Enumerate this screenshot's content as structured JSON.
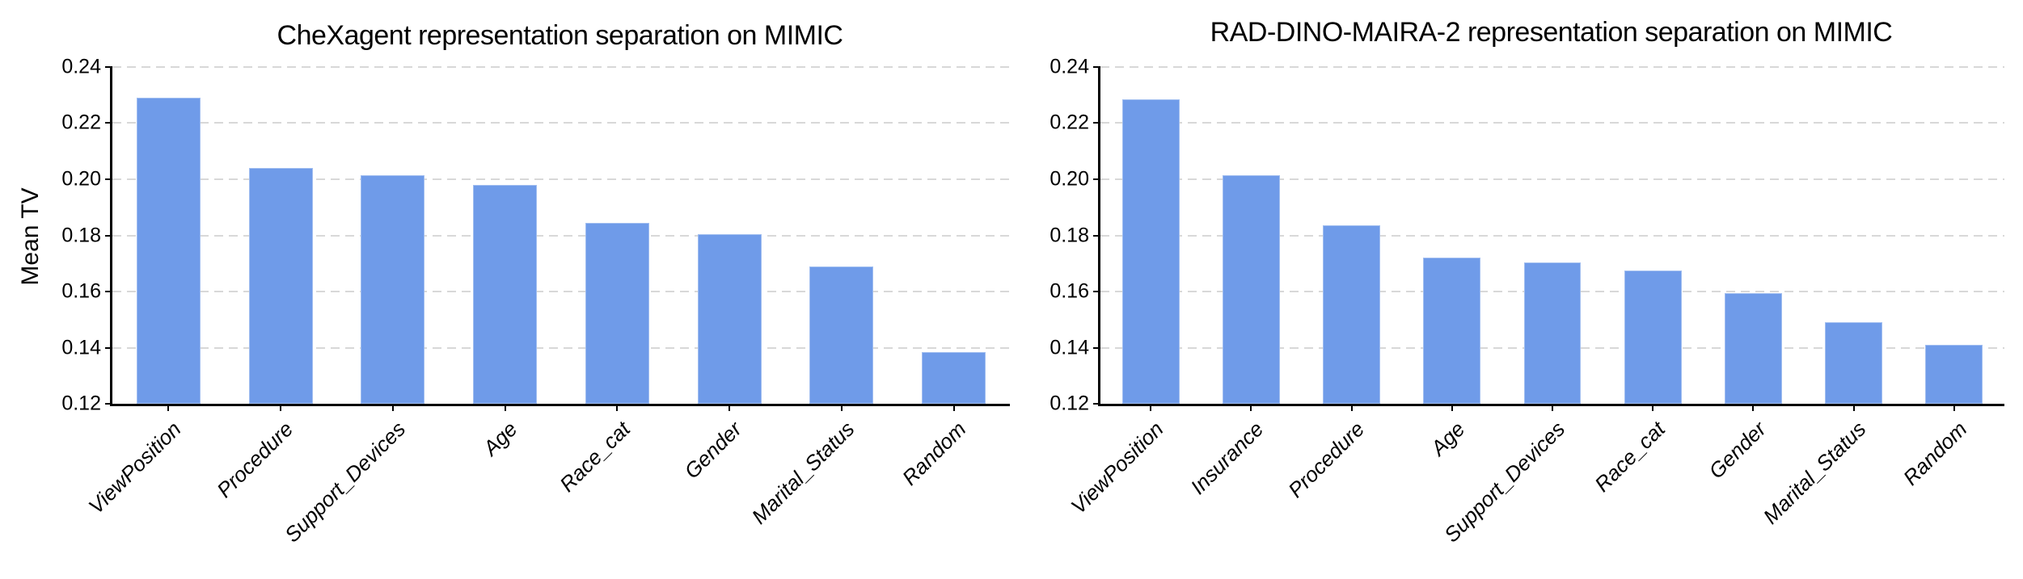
{
  "style": {
    "bar_color": "#6f9be9",
    "grid_color": "#d8d8d8",
    "axis_color": "#000000",
    "text_color": "#000000",
    "background": "#ffffff"
  },
  "chart_data": [
    {
      "type": "bar",
      "title": "CheXagent representation separation on MIMIC",
      "xlabel": "",
      "ylabel": "Mean TV",
      "categories": [
        "ViewPosition",
        "Procedure",
        "Support_Devices",
        "Age",
        "Race_cat",
        "Gender",
        "Marital_Status",
        "Random"
      ],
      "values": [
        0.229,
        0.204,
        0.2015,
        0.198,
        0.1845,
        0.1805,
        0.169,
        0.1385
      ],
      "ylim": [
        0.12,
        0.24
      ],
      "yticks": [
        0.12,
        0.14,
        0.16,
        0.18,
        0.2,
        0.22,
        0.24
      ],
      "yticklabels": [
        "0.12",
        "0.14",
        "0.16",
        "0.18",
        "0.20",
        "0.22",
        "0.24"
      ],
      "grid": "horizontal dashed, axisbelow",
      "legend": "none",
      "bar_color": "#6f9be9",
      "xtick_style": "italic, rotated 45deg, right-anchored"
    },
    {
      "type": "bar",
      "title": "RAD-DINO-MAIRA-2 representation separation on MIMIC",
      "xlabel": "",
      "ylabel": "",
      "categories": [
        "ViewPosition",
        "Insurance",
        "Procedure",
        "Age",
        "Support_Devices",
        "Race_cat",
        "Gender",
        "Marital_Status",
        "Random"
      ],
      "values": [
        0.2285,
        0.2015,
        0.1835,
        0.172,
        0.1705,
        0.1675,
        0.1595,
        0.149,
        0.141
      ],
      "ylim": [
        0.12,
        0.24
      ],
      "yticks": [
        0.12,
        0.14,
        0.16,
        0.18,
        0.2,
        0.22,
        0.24
      ],
      "yticklabels": [
        "0.12",
        "0.14",
        "0.16",
        "0.18",
        "0.20",
        "0.22",
        "0.24"
      ],
      "grid": "horizontal dashed, axisbelow",
      "legend": "none",
      "bar_color": "#6f9be9",
      "xtick_style": "italic, rotated 45deg, right-anchored"
    }
  ]
}
